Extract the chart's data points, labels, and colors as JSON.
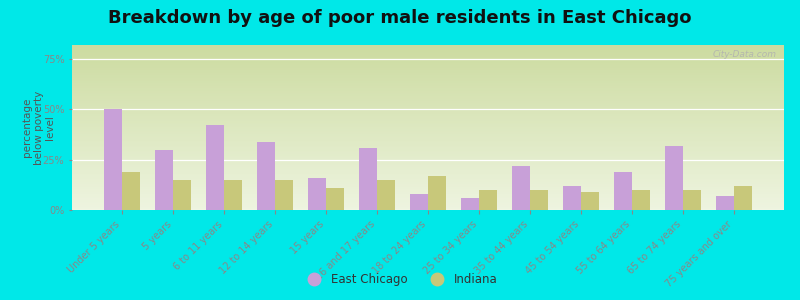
{
  "title": "Breakdown by age of poor male residents in East Chicago",
  "categories": [
    "Under 5 years",
    "5 years",
    "6 to 11 years",
    "12 to 14 years",
    "15 years",
    "16 and 17 years",
    "18 to 24 years",
    "25 to 34 years",
    "35 to 44 years",
    "45 to 54 years",
    "55 to 64 years",
    "65 to 74 years",
    "75 years and over"
  ],
  "east_chicago": [
    50,
    30,
    42,
    34,
    16,
    31,
    8,
    6,
    22,
    12,
    19,
    32,
    7
  ],
  "indiana": [
    19,
    15,
    15,
    15,
    11,
    15,
    17,
    10,
    10,
    9,
    10,
    10,
    12
  ],
  "bar_color_ec": "#c8a0d8",
  "bar_color_in": "#c8c87a",
  "plot_bg_top": "#ccdba0",
  "plot_bg_bottom": "#eef4e0",
  "outer_bg": "#00e8e8",
  "ylabel": "percentage\nbelow poverty\nlevel",
  "yticks": [
    0,
    25,
    50,
    75
  ],
  "ylim": [
    0,
    82
  ],
  "legend_ec": "East Chicago",
  "legend_in": "Indiana",
  "title_fontsize": 13,
  "axis_label_fontsize": 7.5,
  "tick_fontsize": 7,
  "watermark": "City-Data.com"
}
